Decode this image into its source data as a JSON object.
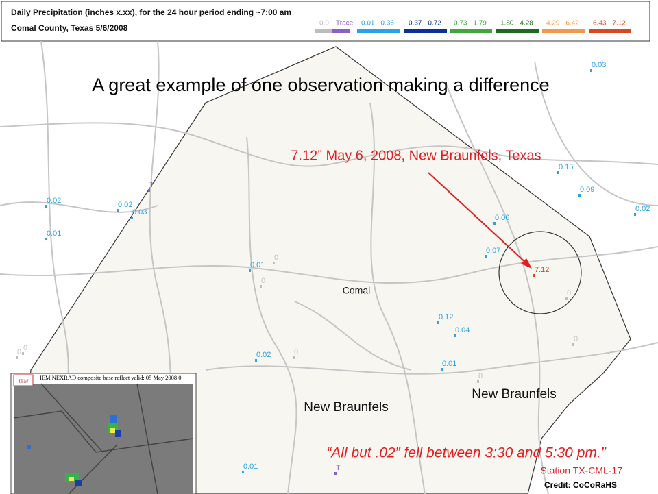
{
  "header": {
    "title": "Daily Precipitation (inches  x.xx),  for the 24 hour period ending ~7:00 am",
    "subtitle": "Comal County, Texas  5/6/2008"
  },
  "legend": [
    {
      "label": "0.0",
      "color": "#bdbdbd"
    },
    {
      "label": "Trace",
      "color": "#8a5fc8"
    },
    {
      "label": "0.01 - 0.36",
      "color": "#29a3e8"
    },
    {
      "label": "0.37 - 0.72",
      "color": "#0b2f9c"
    },
    {
      "label": "0.73 - 1.79",
      "color": "#3ea83a"
    },
    {
      "label": "1.80 - 4.28",
      "color": "#1d6b1d"
    },
    {
      "label": "4.29 - 6.42",
      "color": "#f39a4a"
    },
    {
      "label": "6.43 - 7.12",
      "color": "#d9481c"
    }
  ],
  "headline": "A great example of one observation making a difference",
  "annotation": "7.12”  May 6, 2008,  New Braunfels, Texas",
  "places": [
    "Comal",
    "New Braunfels",
    "New Braunfels"
  ],
  "stations": [
    {
      "label": "0.03",
      "color": "#29a3e8"
    },
    {
      "label": "0.15",
      "color": "#29a3e8"
    },
    {
      "label": "0.09",
      "color": "#29a3e8"
    },
    {
      "label": "0.02",
      "color": "#29a3e8"
    },
    {
      "label": "0.06",
      "color": "#29a3e8"
    },
    {
      "label": "0.07",
      "color": "#29a3e8"
    },
    {
      "label": "7.12",
      "color": "#d9481c"
    },
    {
      "label": "0.02",
      "color": "#29a3e8"
    },
    {
      "label": "0.02",
      "color": "#29a3e8"
    },
    {
      "label": "0.03",
      "color": "#29a3e8"
    },
    {
      "label": "0.01",
      "color": "#29a3e8"
    },
    {
      "label": "T",
      "color": "#8a5fc8"
    },
    {
      "label": "0.01",
      "color": "#29a3e8"
    },
    {
      "label": "0",
      "color": "#bdbdbd"
    },
    {
      "label": "0",
      "color": "#bdbdbd"
    },
    {
      "label": "0.12",
      "color": "#29a3e8"
    },
    {
      "label": "0.04",
      "color": "#29a3e8"
    },
    {
      "label": "0.01",
      "color": "#29a3e8"
    },
    {
      "label": "0.02",
      "color": "#29a3e8"
    },
    {
      "label": "0",
      "color": "#bdbdbd"
    },
    {
      "label": "0",
      "color": "#bdbdbd"
    },
    {
      "label": "0",
      "color": "#bdbdbd"
    },
    {
      "label": "0",
      "color": "#bdbdbd"
    },
    {
      "label": "0",
      "color": "#bdbdbd"
    },
    {
      "label": "0",
      "color": "#bdbdbd"
    },
    {
      "label": "0.01",
      "color": "#29a3e8"
    },
    {
      "label": "T",
      "color": "#8a5fc8"
    }
  ],
  "inset": {
    "logo": "IEM",
    "caption": "IEM NEXRAD composite base reflect valid: 05 May 2008 0"
  },
  "quote": "“All but .02” fell between 3:30 and 5:30 pm.”",
  "station_id": "Station TX-CML-17",
  "credit": "Credit: CoCoRaHS"
}
